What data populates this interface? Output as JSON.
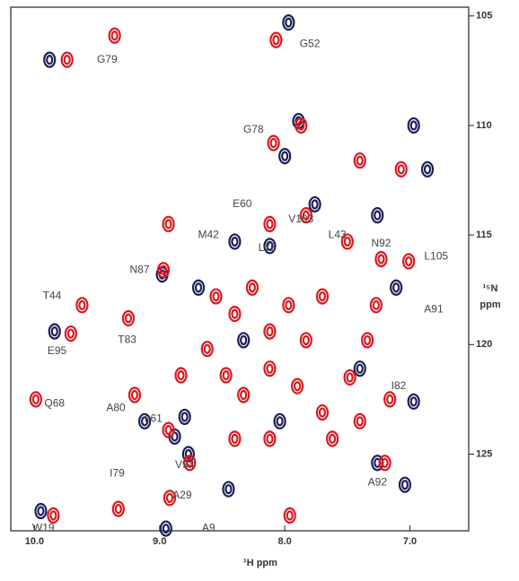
{
  "chart_data": {
    "type": "scatter",
    "x_label": "¹H ppm",
    "y_label_lines": [
      "¹⁵N",
      "ppm"
    ],
    "xlim": [
      10.19,
      6.53
    ],
    "ylim": [
      104.6,
      128.5
    ],
    "reverse_y": true,
    "xticks": [
      {
        "value": 10,
        "label": "10.0"
      },
      {
        "value": 9,
        "label": "9.0"
      },
      {
        "value": 8,
        "label": "8.0"
      },
      {
        "value": 7,
        "label": "7.0"
      }
    ],
    "yticks": [
      105,
      110,
      115,
      120,
      125
    ],
    "series": [
      {
        "color": "#1c1f5a",
        "x": [
          9.88,
          7.97,
          7.89,
          8.0,
          8.4,
          8.12,
          7.76,
          6.97,
          8.98,
          9.84,
          9.12,
          8.8,
          8.88,
          8.77,
          8.95,
          8.45,
          7.04,
          6.97,
          7.26,
          8.04,
          8.33,
          8.69,
          7.11,
          7.4,
          7.26,
          6.86,
          9.95
        ],
        "values": [
          107.0,
          105.3,
          109.8,
          111.4,
          115.3,
          115.5,
          113.6,
          110.0,
          116.8,
          119.4,
          123.5,
          123.3,
          124.2,
          125.0,
          128.4,
          126.6,
          126.4,
          122.6,
          125.4,
          123.5,
          119.8,
          117.4,
          117.4,
          121.1,
          114.1,
          112.0,
          127.6
        ]
      },
      {
        "color": "#d8191f",
        "x": [
          9.36,
          9.74,
          8.07,
          8.93,
          8.12,
          7.83,
          7.5,
          7.23,
          7.01,
          8.97,
          9.62,
          9.71,
          9.25,
          9.99,
          8.93,
          8.76,
          8.92,
          9.85,
          9.33,
          7.96,
          7.2,
          7.16,
          8.09,
          7.87,
          7.4,
          7.07,
          8.55,
          8.4,
          8.26,
          8.12,
          7.97,
          7.83,
          7.7,
          8.62,
          8.47,
          8.33,
          8.12,
          7.9,
          7.7,
          7.48,
          7.34,
          7.27,
          8.83,
          9.2,
          8.4,
          8.12,
          7.62,
          7.4
        ],
        "values": [
          105.9,
          107.0,
          106.1,
          114.5,
          114.5,
          114.1,
          115.3,
          116.1,
          116.2,
          116.6,
          118.2,
          119.5,
          118.8,
          122.5,
          123.9,
          125.4,
          127.0,
          127.8,
          127.5,
          127.8,
          125.4,
          122.5,
          110.8,
          110.0,
          111.6,
          112.0,
          117.8,
          118.6,
          117.4,
          119.4,
          118.2,
          119.8,
          117.8,
          120.2,
          121.4,
          122.3,
          121.1,
          121.9,
          123.1,
          121.5,
          119.8,
          118.2,
          121.4,
          122.3,
          124.3,
          124.3,
          124.3,
          123.5
        ]
      }
    ],
    "annotations": [
      {
        "text": "G79",
        "x": 9.42,
        "y": 107.0
      },
      {
        "text": "G52",
        "x": 7.8,
        "y": 106.3
      },
      {
        "text": "G78",
        "x": 8.25,
        "y": 110.2
      },
      {
        "text": "E60",
        "x": 8.34,
        "y": 113.6
      },
      {
        "text": "V103",
        "x": 7.87,
        "y": 114.3
      },
      {
        "text": "M42",
        "x": 8.61,
        "y": 115.0
      },
      {
        "text": "L43",
        "x": 7.58,
        "y": 115.0
      },
      {
        "text": "N92",
        "x": 7.23,
        "y": 115.4
      },
      {
        "text": "L105",
        "x": 6.79,
        "y": 116.0
      },
      {
        "text": "L75",
        "x": 8.14,
        "y": 115.6
      },
      {
        "text": "N87",
        "x": 9.16,
        "y": 116.6
      },
      {
        "text": "T44",
        "x": 9.86,
        "y": 117.8
      },
      {
        "text": "A91",
        "x": 6.81,
        "y": 118.4
      },
      {
        "text": "T83",
        "x": 9.26,
        "y": 119.8
      },
      {
        "text": "E95",
        "x": 9.82,
        "y": 120.3
      },
      {
        "text": "I82",
        "x": 7.09,
        "y": 121.9
      },
      {
        "text": "Q68",
        "x": 9.84,
        "y": 122.7
      },
      {
        "text": "A80",
        "x": 9.35,
        "y": 122.9
      },
      {
        "text": "L61",
        "x": 9.05,
        "y": 123.4
      },
      {
        "text": "V94",
        "x": 8.8,
        "y": 125.5
      },
      {
        "text": "I79",
        "x": 9.34,
        "y": 125.9
      },
      {
        "text": "A29",
        "x": 8.82,
        "y": 126.9
      },
      {
        "text": "A92",
        "x": 7.26,
        "y": 126.3
      },
      {
        "text": "W19",
        "x": 9.93,
        "y": 128.4
      },
      {
        "text": "A9",
        "x": 8.61,
        "y": 128.4
      }
    ]
  }
}
